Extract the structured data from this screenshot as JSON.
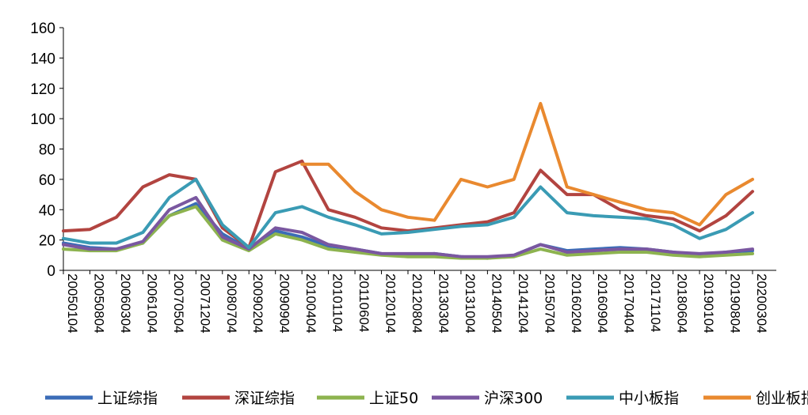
{
  "chart_data": {
    "type": "line",
    "title": "",
    "xlabel": "",
    "ylabel": "",
    "ylim": [
      0,
      160
    ],
    "yticks": [
      0,
      20,
      40,
      60,
      80,
      100,
      120,
      140,
      160
    ],
    "grid": false,
    "legend_position": "bottom",
    "x": [
      "20050104",
      "20050804",
      "20060304",
      "20061004",
      "20070504",
      "20071204",
      "20080704",
      "20090204",
      "20090904",
      "20100404",
      "20101104",
      "20110604",
      "20120104",
      "20120804",
      "20130304",
      "20131004",
      "20140504",
      "20141204",
      "20150704",
      "20160204",
      "20160904",
      "20170404",
      "20171104",
      "20180604",
      "20190104",
      "20190804",
      "20200304"
    ],
    "series": [
      {
        "name": "上证综指",
        "color": "#3B6CB7",
        "values": [
          18,
          15,
          14,
          18,
          36,
          44,
          24,
          14,
          26,
          22,
          16,
          14,
          11,
          10,
          11,
          9,
          8,
          10,
          17,
          13,
          14,
          15,
          14,
          12,
          10,
          12,
          13
        ]
      },
      {
        "name": "深证综指",
        "color": "#B24440",
        "values": [
          26,
          27,
          35,
          55,
          63,
          60,
          28,
          15,
          65,
          72,
          40,
          35,
          28,
          26,
          28,
          30,
          32,
          38,
          66,
          50,
          50,
          40,
          36,
          34,
          26,
          36,
          52
        ]
      },
      {
        "name": "上证50",
        "color": "#8DB34F",
        "values": [
          14,
          13,
          13,
          18,
          36,
          42,
          20,
          13,
          24,
          20,
          14,
          12,
          10,
          9,
          9,
          8,
          8,
          9,
          14,
          10,
          11,
          12,
          12,
          10,
          9,
          10,
          11
        ]
      },
      {
        "name": "沪深300",
        "color": "#7A57A0",
        "values": [
          17,
          14,
          14,
          19,
          40,
          48,
          22,
          14,
          28,
          25,
          17,
          14,
          11,
          11,
          11,
          9,
          9,
          10,
          17,
          12,
          13,
          14,
          14,
          12,
          11,
          12,
          14
        ]
      },
      {
        "name": "中小板指",
        "color": "#3A9BB4",
        "values": [
          21,
          18,
          18,
          25,
          48,
          60,
          30,
          15,
          38,
          42,
          35,
          30,
          24,
          25,
          27,
          29,
          30,
          35,
          55,
          38,
          36,
          35,
          34,
          30,
          21,
          27,
          38
        ]
      },
      {
        "name": "创业板指",
        "color": "#E9892F",
        "values": [
          null,
          null,
          null,
          null,
          null,
          null,
          null,
          null,
          null,
          70,
          70,
          52,
          40,
          35,
          33,
          60,
          55,
          60,
          110,
          55,
          50,
          45,
          40,
          38,
          30,
          50,
          60
        ]
      }
    ]
  }
}
